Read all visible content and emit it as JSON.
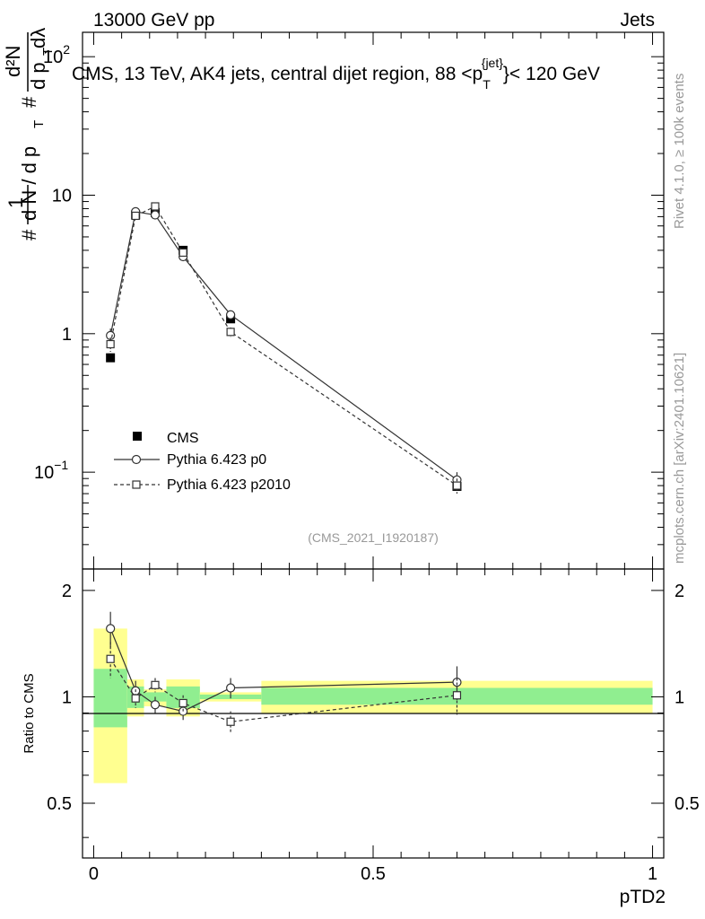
{
  "header": {
    "left": "13000 GeV pp",
    "right": "Jets"
  },
  "side_labels": {
    "rivet": "Rivet 4.1.0, ≥ 100k events",
    "mcplots": "mcplots.cern.ch [arXiv:2401.10621]"
  },
  "chart_data": {
    "type": "line",
    "title": "CMS, 13 TeV, AK4 jets, central dijet region, 88 <p_T^{jet}< 120 GeV",
    "title_parts": {
      "main": "CMS, 13 TeV, AK4 jets, central dijet region, 88 <p",
      "sub": "T",
      "sup": "{jet}",
      "tail": "}< 120 GeV"
    },
    "ylabel_parts": {
      "hash1": "#",
      "one": "1",
      "dN": "d N / d p",
      "T": "T",
      "hash2": "#",
      "d2N": "d²N",
      "dpTdl": "d p",
      "dl": " dλ"
    },
    "xlabel": "pTD2",
    "ratio_ylabel": "Ratio to CMS",
    "watermark": "(CMS_2021_I1920187)",
    "xlim": [
      -0.02,
      1.02
    ],
    "ylim_main": [
      0.02,
      150
    ],
    "ylim_ratio": [
      0.35,
      2.3
    ],
    "x_ticks": [
      0,
      0.5,
      1
    ],
    "x_tick_labels": [
      "0",
      "0.5",
      "1"
    ],
    "y_ticks_main": [
      0.1,
      1,
      10,
      100
    ],
    "y_tick_labels_main": [
      {
        "base": "10",
        "exp": "−1"
      },
      {
        "base": "1",
        "exp": ""
      },
      {
        "base": "10",
        "exp": ""
      },
      {
        "base": "10",
        "exp": "2"
      }
    ],
    "y_ticks_ratio": [
      0.5,
      1,
      2
    ],
    "y_tick_labels_ratio": [
      "0.5",
      "1",
      "2"
    ],
    "bins": [
      {
        "low": 0.0,
        "high": 0.06
      },
      {
        "low": 0.06,
        "high": 0.09
      },
      {
        "low": 0.09,
        "high": 0.13
      },
      {
        "low": 0.13,
        "high": 0.19
      },
      {
        "low": 0.19,
        "high": 0.3
      },
      {
        "low": 0.3,
        "high": 1.0
      }
    ],
    "legend": [
      "CMS",
      "Pythia 6.423 p0",
      "Pythia 6.423 p2010"
    ],
    "series": [
      {
        "name": "CMS",
        "marker": "filled-square",
        "x": [
          0.03,
          0.075,
          0.11,
          0.16,
          0.245,
          0.65
        ],
        "y": [
          0.67,
          7.2,
          7.5,
          4.0,
          1.28,
          0.079
        ]
      },
      {
        "name": "Pythia 6.423 p0",
        "marker": "open-circle",
        "line": "solid",
        "x": [
          0.03,
          0.075,
          0.11,
          0.16,
          0.245,
          0.65
        ],
        "y": [
          0.97,
          7.6,
          7.2,
          3.6,
          1.37,
          0.088
        ],
        "yerr": [
          0.12,
          0.4,
          0.4,
          0.2,
          0.1,
          0.012
        ]
      },
      {
        "name": "Pythia 6.423 p2010",
        "marker": "open-square",
        "line": "dashed",
        "x": [
          0.03,
          0.075,
          0.11,
          0.16,
          0.245,
          0.65
        ],
        "y": [
          0.84,
          7.1,
          8.3,
          3.85,
          1.03,
          0.08
        ],
        "yerr": [
          0.1,
          0.4,
          0.4,
          0.2,
          0.08,
          0.01
        ]
      }
    ],
    "ratio": {
      "bands_total": [
        {
          "low": 0.57,
          "high": 1.56
        },
        {
          "low": 0.88,
          "high": 1.12
        },
        {
          "low": 0.94,
          "high": 1.05
        },
        {
          "low": 0.88,
          "high": 1.12
        },
        {
          "low": 0.97,
          "high": 1.03
        },
        {
          "low": 0.9,
          "high": 1.11
        }
      ],
      "bands_stat": [
        {
          "low": 0.82,
          "high": 1.2
        },
        {
          "low": 0.93,
          "high": 1.07
        },
        {
          "low": 0.97,
          "high": 1.03
        },
        {
          "low": 0.93,
          "high": 1.07
        },
        {
          "low": 0.985,
          "high": 1.015
        },
        {
          "low": 0.95,
          "high": 1.06
        }
      ],
      "series": [
        {
          "name": "Pythia 6.423 p0",
          "y": [
            1.56,
            1.04,
            0.95,
            0.91,
            1.06,
            1.1
          ],
          "yerr": [
            0.18,
            0.07,
            0.05,
            0.05,
            0.07,
            0.12
          ]
        },
        {
          "name": "Pythia 6.423 p2010",
          "y": [
            1.28,
            0.99,
            1.08,
            0.96,
            0.85,
            1.01
          ],
          "yerr": [
            0.15,
            0.06,
            0.05,
            0.05,
            0.06,
            0.12
          ]
        }
      ]
    },
    "colors": {
      "stat_band": "#90ee90",
      "total_band": "#ffff90",
      "frame": "#000000",
      "text_gray": "#999999"
    }
  }
}
